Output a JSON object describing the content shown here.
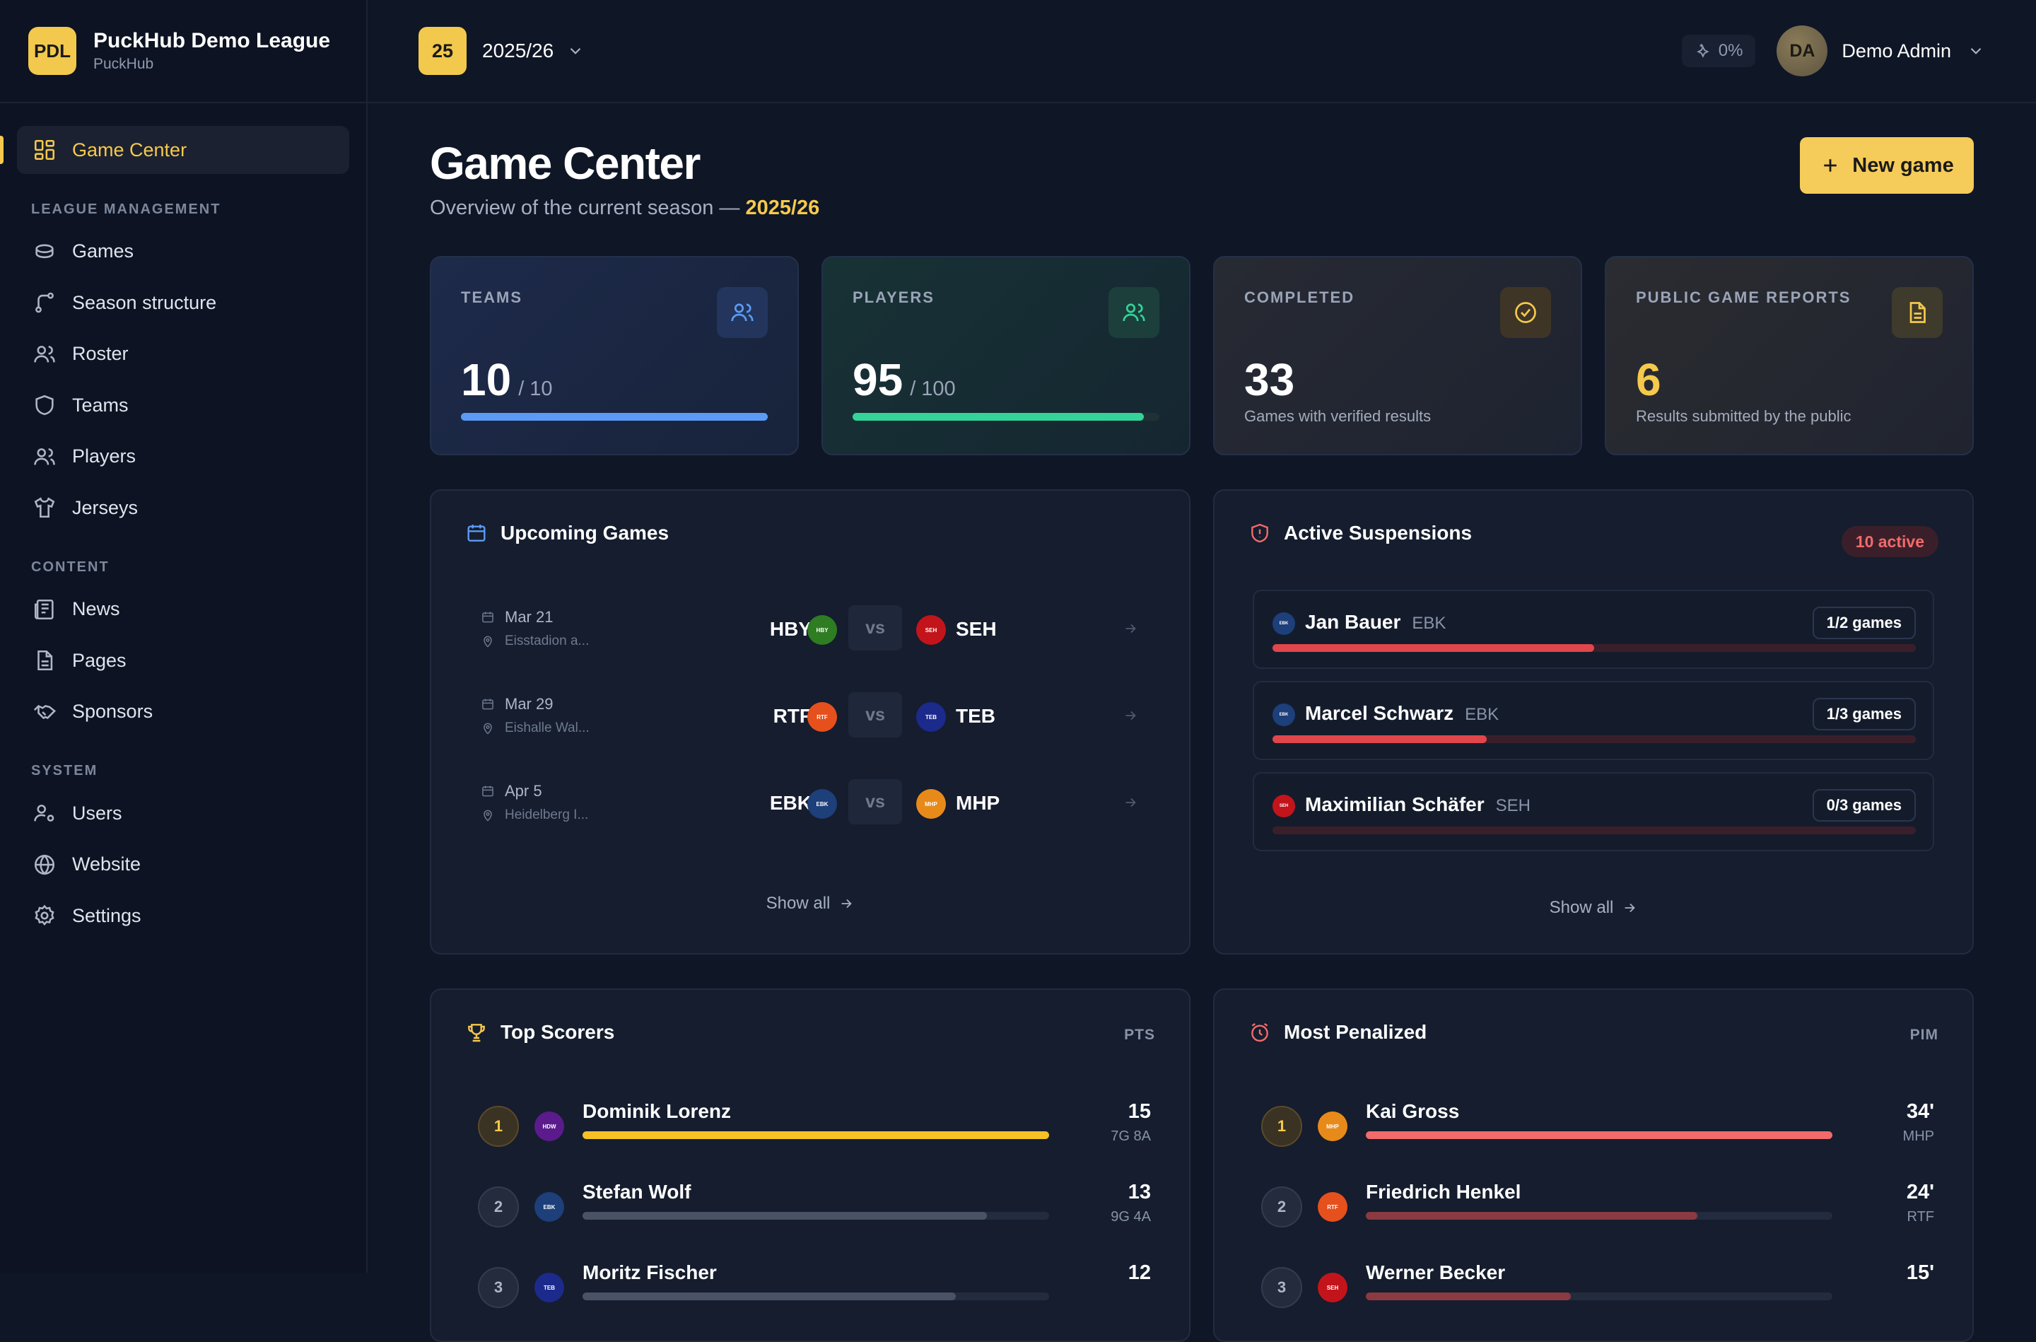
{
  "brand": {
    "logo": "PDL",
    "title": "PuckHub Demo League",
    "subtitle": "PuckHub"
  },
  "sidebar": {
    "active": {
      "label": "Game Center",
      "icon": "grid-icon"
    },
    "sections": [
      {
        "title": "LEAGUE MANAGEMENT",
        "items": [
          {
            "label": "Games",
            "icon": "puck-icon"
          },
          {
            "label": "Season structure",
            "icon": "branch-icon"
          },
          {
            "label": "Roster",
            "icon": "users-icon"
          },
          {
            "label": "Teams",
            "icon": "shield-icon"
          },
          {
            "label": "Players",
            "icon": "users-icon"
          },
          {
            "label": "Jerseys",
            "icon": "shirt-icon"
          }
        ]
      },
      {
        "title": "CONTENT",
        "items": [
          {
            "label": "News",
            "icon": "newspaper-icon"
          },
          {
            "label": "Pages",
            "icon": "file-icon"
          },
          {
            "label": "Sponsors",
            "icon": "handshake-icon"
          }
        ]
      },
      {
        "title": "SYSTEM",
        "items": [
          {
            "label": "Users",
            "icon": "user-gear-icon"
          },
          {
            "label": "Website",
            "icon": "globe-icon"
          },
          {
            "label": "Settings",
            "icon": "gear-icon"
          }
        ]
      }
    ]
  },
  "topbar": {
    "season_badge": "25",
    "season_label": "2025/26",
    "perf": "0%",
    "user_initials": "DA",
    "user_name": "Demo Admin"
  },
  "page": {
    "title": "Game Center",
    "subtitle_prefix": "Overview of the current season —",
    "subtitle_season": "2025/26",
    "new_button": "New game"
  },
  "stats": {
    "teams": {
      "label": "TEAMS",
      "value": "10",
      "total": "/ 10",
      "progress": 1.0
    },
    "players": {
      "label": "PLAYERS",
      "value": "95",
      "total": "/ 100",
      "progress": 0.95
    },
    "completed": {
      "label": "COMPLETED",
      "value": "33",
      "desc": "Games with verified results"
    },
    "reports": {
      "label": "PUBLIC GAME REPORTS",
      "value": "6",
      "desc": "Results submitted by the public"
    }
  },
  "upcoming": {
    "title": "Upcoming Games",
    "show_all": "Show all",
    "vs": "vs",
    "games": [
      {
        "date": "Mar 21",
        "location": "Eisstadion a...",
        "home": "HBY",
        "home_color": "#2e7d22",
        "away": "SEH",
        "away_color": "#c3141b"
      },
      {
        "date": "Mar 29",
        "location": "Eishalle Wal...",
        "home": "RTF",
        "home_color": "#e6501c",
        "away": "TEB",
        "away_color": "#1c2a8c"
      },
      {
        "date": "Apr 5",
        "location": "Heidelberg I...",
        "home": "EBK",
        "home_color": "#1d3f7a",
        "away": "MHP",
        "away_color": "#e88a1a"
      }
    ]
  },
  "suspensions": {
    "title": "Active Suspensions",
    "badge": "10 active",
    "show_all": "Show all",
    "items": [
      {
        "name": "Jan Bauer",
        "team": "EBK",
        "team_color": "#1d3f7a",
        "count": "1/2 games",
        "progress": 0.5
      },
      {
        "name": "Marcel Schwarz",
        "team": "EBK",
        "team_color": "#1d3f7a",
        "count": "1/3 games",
        "progress": 0.333
      },
      {
        "name": "Maximilian Schäfer",
        "team": "SEH",
        "team_color": "#c3141b",
        "count": "0/3 games",
        "progress": 0.0
      }
    ]
  },
  "scorers": {
    "title": "Top Scorers",
    "meta": "PTS",
    "rows": [
      {
        "rank": "1",
        "name": "Dominik Lorenz",
        "team": "HDW",
        "team_color": "#5b1b8c",
        "value": "15",
        "detail": "7G 8A",
        "progress": 1.0
      },
      {
        "rank": "2",
        "name": "Stefan Wolf",
        "team": "EBK",
        "team_color": "#1d3f7a",
        "value": "13",
        "detail": "9G 4A",
        "progress": 0.867
      },
      {
        "rank": "3",
        "name": "Moritz Fischer",
        "team": "TEB",
        "team_color": "#1c2a8c",
        "value": "12",
        "detail": "",
        "progress": 0.8
      }
    ]
  },
  "penalized": {
    "title": "Most Penalized",
    "meta": "PIM",
    "rows": [
      {
        "rank": "1",
        "name": "Kai Gross",
        "team": "MHP",
        "team_color": "#e88a1a",
        "value": "34'",
        "detail": "MHP",
        "progress": 1.0
      },
      {
        "rank": "2",
        "name": "Friedrich Henkel",
        "team": "RTF",
        "team_color": "#e6501c",
        "value": "24'",
        "detail": "RTF",
        "progress": 0.71
      },
      {
        "rank": "3",
        "name": "Werner Becker",
        "team": "SEH",
        "team_color": "#c3141b",
        "value": "15'",
        "detail": "",
        "progress": 0.44
      }
    ]
  }
}
